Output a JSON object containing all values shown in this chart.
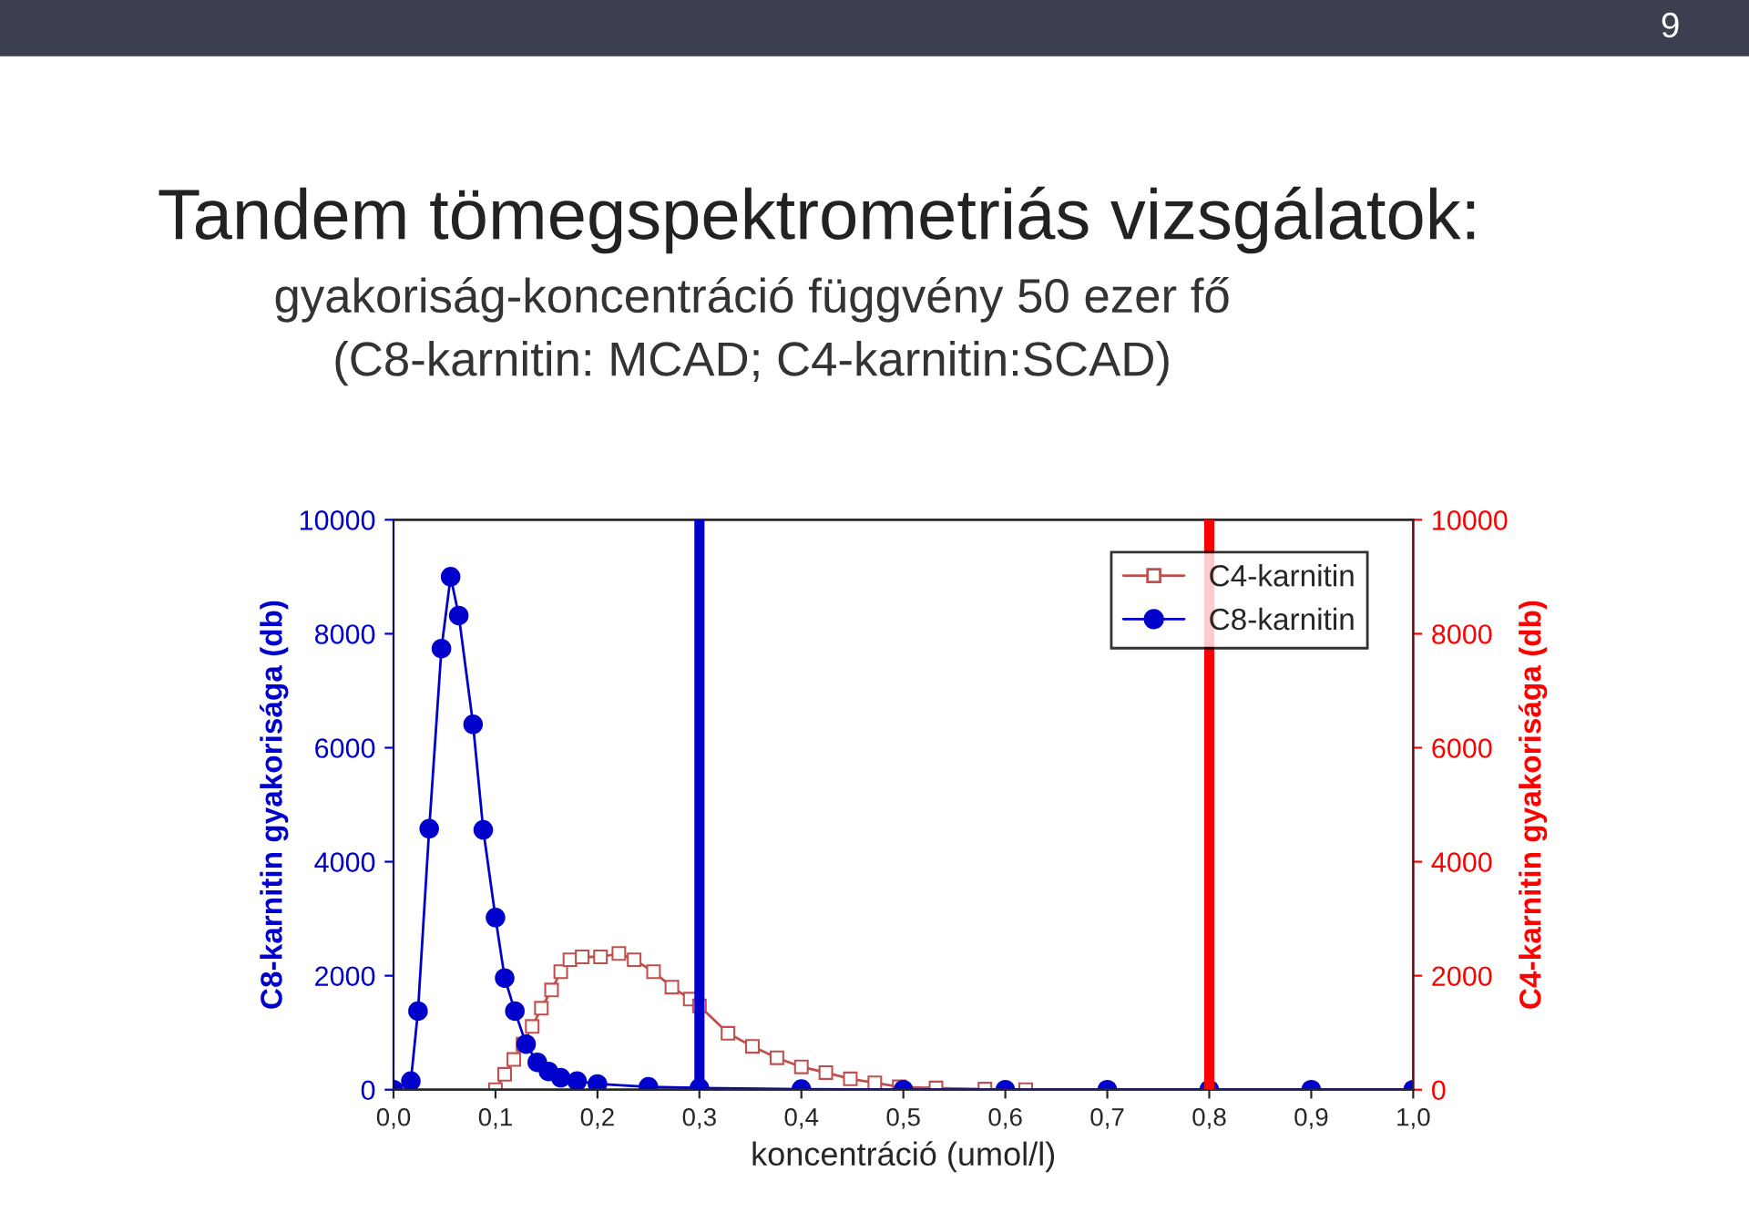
{
  "chart_data": {
    "type": "line",
    "title": "Tandem tömegspektrometriás vizsgálatok:",
    "subtitle": "gyakoriság-koncentráció függvény 50 ezer fő\n(C8-karnitin: MCAD; C4-karnitin:SCAD)",
    "xlabel": "koncentráció (umol/l)",
    "ylabel": "C8-karnitin gyakorisága (db)",
    "y2label": "C4-karnitin gyakorisága (db)",
    "annotations": [
      "9"
    ],
    "xlim": [
      0,
      1.0
    ],
    "xticks": [
      {
        "value": 0,
        "label": "0,0"
      },
      {
        "value": 0.1,
        "label": "0,1"
      },
      {
        "value": 0.2,
        "label": "0,2"
      },
      {
        "value": 0.3,
        "label": "0,3"
      },
      {
        "value": 0.4,
        "label": "0,4"
      },
      {
        "value": 0.5,
        "label": "0,5"
      },
      {
        "value": 0.6,
        "label": "0,6"
      },
      {
        "value": 0.7,
        "label": "0,7"
      },
      {
        "value": 0.8,
        "label": "0,8"
      },
      {
        "value": 0.9,
        "label": "0,9"
      },
      {
        "value": 1.0,
        "label": "1,0"
      }
    ],
    "ylim": [
      0,
      10000
    ],
    "yticks": [
      0,
      2000,
      4000,
      6000,
      8000,
      10000
    ],
    "y2lim": [
      0,
      10000
    ],
    "y2ticks": [
      0,
      2000,
      4000,
      6000,
      8000,
      10000
    ],
    "series": [
      {
        "name": "C4-karnitin",
        "color": "#c0504d",
        "axis": "y2",
        "marker": "square",
        "x": [
          0.1,
          0.109,
          0.118,
          0.127,
          0.136,
          0.145,
          0.155,
          0.164,
          0.173,
          0.185,
          0.203,
          0.221,
          0.236,
          0.255,
          0.273,
          0.291,
          0.3,
          0.328,
          0.352,
          0.376,
          0.4,
          0.424,
          0.448,
          0.472,
          0.496,
          0.532,
          0.58,
          0.62,
          0.7,
          0.8,
          0.9,
          1.0
        ],
        "values": [
          0,
          270,
          530,
          800,
          1110,
          1430,
          1750,
          2070,
          2280,
          2330,
          2330,
          2390,
          2280,
          2070,
          1800,
          1590,
          1470,
          990,
          760,
          560,
          400,
          300,
          190,
          120,
          50,
          30,
          10,
          0,
          0,
          0,
          0,
          0
        ]
      },
      {
        "name": "C8-karnitin",
        "color": "#0000cc",
        "axis": "y",
        "marker": "circle",
        "x": [
          0.0,
          0.017,
          0.024,
          0.035,
          0.047,
          0.056,
          0.064,
          0.078,
          0.088,
          0.1,
          0.109,
          0.119,
          0.13,
          0.141,
          0.152,
          0.164,
          0.18,
          0.2,
          0.25,
          0.3,
          0.4,
          0.5,
          0.6,
          0.7,
          0.8,
          0.9,
          1.0
        ],
        "values": [
          0,
          150,
          1380,
          4580,
          7740,
          9000,
          8320,
          6410,
          4560,
          3020,
          1960,
          1380,
          800,
          480,
          320,
          210,
          150,
          100,
          50,
          30,
          10,
          0,
          0,
          0,
          0,
          0,
          0
        ]
      }
    ],
    "ref_lines": [
      {
        "axis": "x",
        "value": 0.3,
        "color": "#0000cc"
      },
      {
        "axis": "x",
        "value": 0.8,
        "color": "#ff0000"
      }
    ],
    "legend": "top right",
    "grid": false
  }
}
